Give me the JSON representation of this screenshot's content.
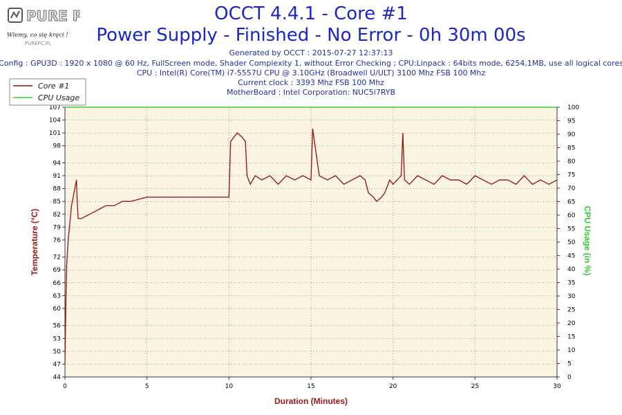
{
  "header": {
    "title": "OCCT 4.4.1 - Core #1",
    "subtitle": "Power Supply - Finished - No Error - 0h 30m 00s",
    "generated": "Generated by OCCT : 2015-07-27 12:37:13",
    "config": "Config : GPU3D : 1920 x 1080 @ 60 Hz, FullScreen mode, Shader Complexity 1, without Error Checking ; CPU:Linpack : 64bits mode, 6254,1MB, use all logical cores",
    "cpu": "CPU : Intel(R) Core(TM) i7-5557U CPU @ 3.10GHz (Broadwell U/ULT) 3100 Mhz FSB 100 Mhz",
    "clock": "Current clock : 3393 Mhz FSB 100 Mhz",
    "motherboard": "MotherBoard : Intel Corporation: NUC5i7RYB"
  },
  "logo": {
    "text": "PURE PC",
    "tagline": "Wiemy, co się kręci !",
    "url_text": "PUREPC.PL"
  },
  "colors": {
    "title": "#1a26c8",
    "temperature": "#8b1010",
    "cpu_usage": "#33cc33",
    "plot_bg": "#faf4e2",
    "grid": "#a04040"
  },
  "chart_data": {
    "type": "line",
    "xlabel": "Duration (Minutes)",
    "ylabel": "Temperature (°C)",
    "y2label": "CPU Usage (in %)",
    "xlim": [
      0,
      30
    ],
    "ylim": [
      44,
      107
    ],
    "y2lim": [
      0,
      100
    ],
    "x_ticks": [
      0,
      5,
      10,
      15,
      20,
      25,
      30
    ],
    "y_ticks": [
      44,
      47,
      50,
      53,
      56,
      60,
      63,
      66,
      69,
      72,
      76,
      79,
      82,
      85,
      88,
      91,
      94,
      98,
      101,
      104,
      107
    ],
    "y2_ticks": [
      0,
      5,
      10,
      15,
      20,
      25,
      30,
      35,
      40,
      45,
      50,
      55,
      60,
      65,
      70,
      75,
      80,
      85,
      90,
      95,
      100
    ],
    "grid": true,
    "legend_position": "top-left",
    "series": [
      {
        "name": "Core #1",
        "axis": "left",
        "x": [
          0.0,
          0.05,
          0.1,
          0.2,
          0.3,
          0.4,
          0.5,
          0.6,
          0.7,
          0.75,
          0.8,
          0.9,
          1.0,
          1.5,
          2.0,
          2.5,
          3.0,
          3.5,
          4.0,
          5.0,
          6.0,
          7.0,
          8.0,
          9.0,
          9.9,
          10.0,
          10.1,
          10.3,
          10.5,
          10.8,
          11.0,
          11.1,
          11.3,
          11.6,
          12.0,
          12.5,
          13.0,
          13.5,
          14.0,
          14.5,
          15.0,
          15.1,
          15.5,
          16.0,
          16.5,
          17.0,
          17.5,
          18.0,
          18.3,
          18.5,
          18.8,
          19.0,
          19.3,
          19.5,
          19.8,
          20.0,
          20.5,
          20.6,
          20.7,
          21.0,
          21.5,
          22.0,
          22.5,
          23.0,
          23.5,
          24.0,
          24.5,
          25.0,
          25.5,
          26.0,
          26.5,
          27.0,
          27.5,
          28.0,
          28.5,
          29.0,
          29.5,
          30.0
        ],
        "values": [
          47,
          60,
          70,
          76,
          80,
          84,
          86,
          88,
          90,
          85,
          81,
          81,
          81,
          82,
          83,
          84,
          84,
          85,
          85,
          86,
          86,
          86,
          86,
          86,
          86,
          86,
          99,
          100,
          101,
          100,
          99,
          91,
          89,
          91,
          90,
          91,
          89,
          91,
          90,
          91,
          90,
          102,
          91,
          90,
          91,
          89,
          90,
          91,
          90,
          87,
          86,
          85,
          86,
          87,
          90,
          89,
          91,
          101,
          90,
          89,
          91,
          90,
          89,
          91,
          90,
          90,
          89,
          91,
          90,
          89,
          90,
          90,
          89,
          91,
          89,
          90,
          89,
          90
        ]
      },
      {
        "name": "CPU Usage",
        "axis": "right",
        "x": [
          0,
          30
        ],
        "values": [
          100,
          100
        ]
      }
    ]
  }
}
